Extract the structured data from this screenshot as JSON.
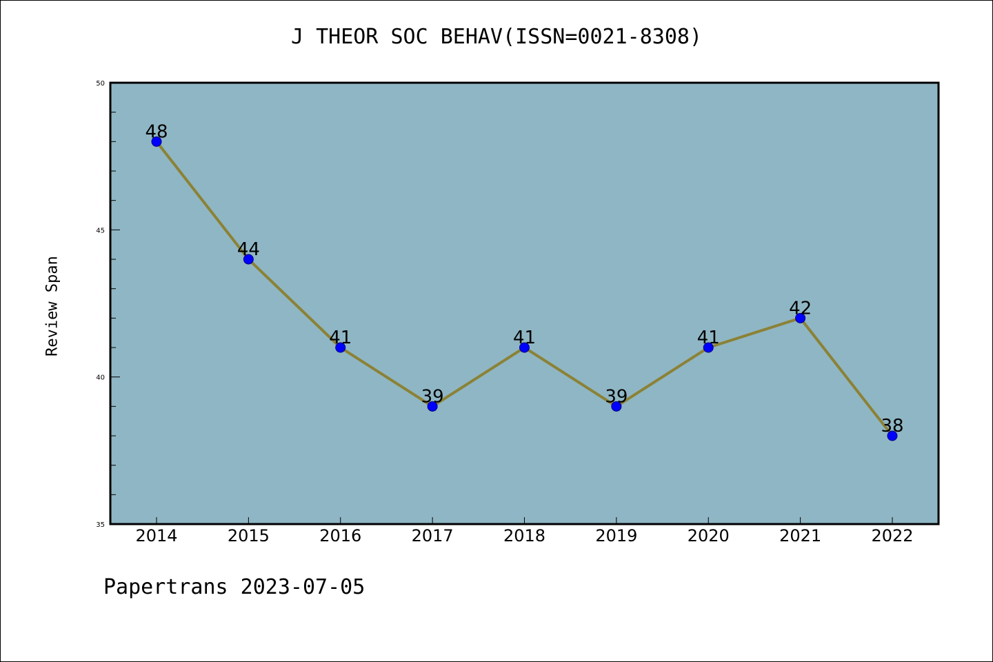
{
  "chart_data": {
    "type": "line",
    "title": "J THEOR SOC BEHAV(ISSN=0021-8308)",
    "xlabel": "",
    "ylabel": "Review Span",
    "categories": [
      "2014",
      "2015",
      "2016",
      "2017",
      "2018",
      "2019",
      "2020",
      "2021",
      "2022"
    ],
    "values": [
      48,
      44,
      41,
      39,
      41,
      39,
      41,
      42,
      38
    ],
    "data_labels": [
      "48",
      "44",
      "41",
      "39",
      "41",
      "39",
      "41",
      "42",
      "38"
    ],
    "ylim": [
      35,
      50
    ],
    "yticks": [
      35,
      40,
      45,
      50
    ],
    "ytick_labels": [
      "35",
      "40",
      "45",
      "50"
    ],
    "grid": false,
    "legend": "none",
    "colors": {
      "plot_background": "#8fb6c4",
      "line": "#8b8236",
      "marker": "#0000ff",
      "marker_edge": "#000080",
      "axes": "#000000"
    }
  },
  "footer": {
    "note": "Papertrans 2023-07-05"
  }
}
